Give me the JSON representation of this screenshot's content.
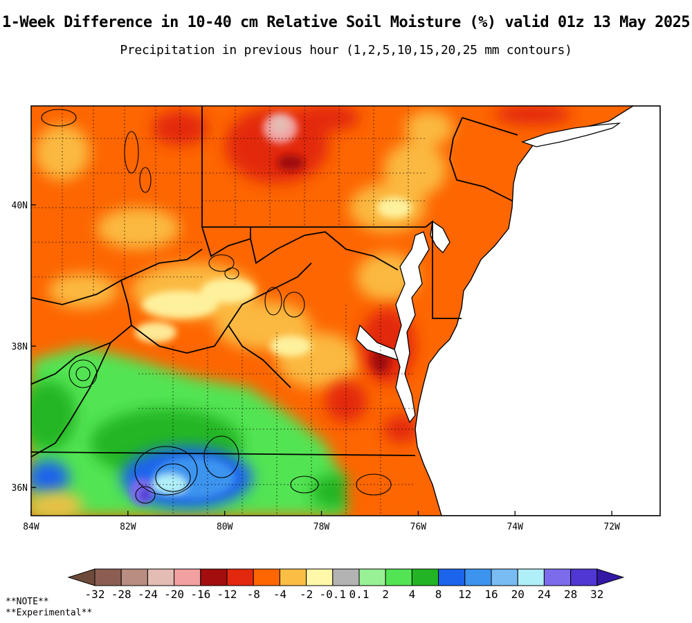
{
  "header": {
    "title": "1-Week Difference in 10-40 cm Relative Soil Moisture (%) valid 01z 13 May 2025",
    "subtitle": "Precipitation in previous hour (1,2,5,10,15,20,25 mm contours)"
  },
  "map": {
    "region": "Mid-Atlantic United States",
    "lat_ticks": [
      "40N",
      "38N",
      "36N"
    ],
    "lon_ticks": [
      "84W",
      "82W",
      "80W",
      "78W",
      "76W",
      "74W",
      "72W"
    ],
    "lon_range": [
      -84,
      -71
    ],
    "lat_range": [
      35.6,
      41.4
    ]
  },
  "colorbar": {
    "labels": [
      "-32",
      "-28",
      "-24",
      "-20",
      "-16",
      "-12",
      "-8",
      "-4",
      "-2",
      "-0.1",
      "0.1",
      "2",
      "4",
      "8",
      "12",
      "16",
      "20",
      "24",
      "28",
      "32"
    ],
    "colors": [
      "#6e4a3a",
      "#8c5e52",
      "#b98d82",
      "#e3bcb3",
      "#f2a0a0",
      "#a30d0d",
      "#e2280e",
      "#fd6600",
      "#fbbe45",
      "#fff8a8",
      "#b3b3b3",
      "#98f194",
      "#53e453",
      "#22b424",
      "#1c64ec",
      "#3c94ef",
      "#79bcf3",
      "#b0eff8",
      "#7c6ceb",
      "#5036d2",
      "#3319a3"
    ]
  },
  "notes": [
    "**NOTE**",
    "**Experimental**"
  ]
}
